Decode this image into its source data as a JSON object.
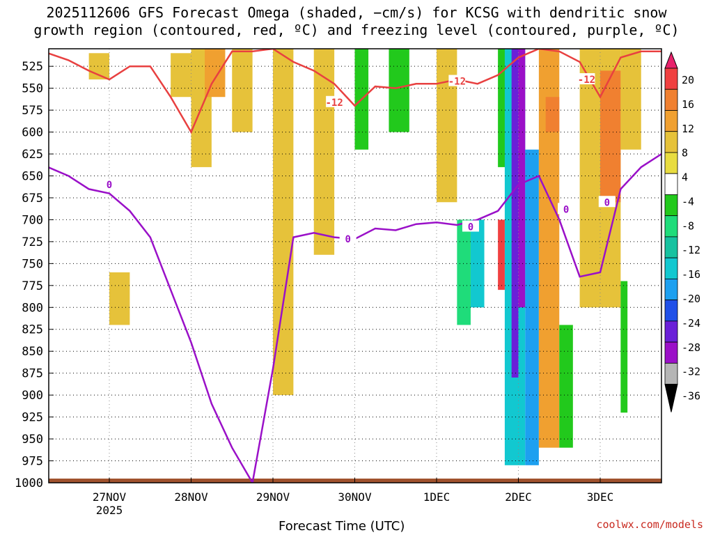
{
  "title_line1": "2025112606 GFS Forecast Omega (shaded, −cm/s) for KCSG with dendritic snow",
  "title_line2": "growth region (contoured, red, ºC) and freezing level (contoured, purple, ºC)",
  "credit": "coolwx.com/models",
  "chart_data": {
    "type": "heatmap",
    "xlabel": "Forecast Time (UTC)",
    "ylabel": "",
    "x_ticks": [
      "27NOV",
      "28NOV",
      "29NOV",
      "30NOV",
      "1DEC",
      "2DEC",
      "3DEC"
    ],
    "x_sublabel": "2025",
    "y_ticks": [
      525,
      550,
      575,
      600,
      625,
      650,
      675,
      700,
      725,
      750,
      775,
      800,
      825,
      850,
      875,
      900,
      925,
      950,
      975,
      1000
    ],
    "y_range_hpa": [
      1000,
      505
    ],
    "colorbar_labels": [
      "20",
      "16",
      "12",
      "8",
      "4",
      "-4",
      "-8",
      "-12",
      "-16",
      "-20",
      "-24",
      "-28",
      "-32",
      "-36"
    ],
    "colorbar_colors": [
      "#e8226b",
      "#f04040",
      "#f08030",
      "#f0a030",
      "#e6c23a",
      "#e8dc40",
      "#ffffff",
      "#22c91c",
      "#1fdc7a",
      "#17c2a0",
      "#12c8d0",
      "#1da0f0",
      "#2050e8",
      "#6a20d8",
      "#9b10c8",
      "#b5b5b5",
      "#000000"
    ],
    "contour_labels": {
      "dendritic_red": "-12",
      "freezing_purple": "0"
    },
    "red_contour_color": "#e84040",
    "purple_contour_color": "#9a10c8",
    "ground_color": "#a0522d",
    "red_line": [
      [
        "26NOV06",
        510
      ],
      [
        "26NOV12",
        518
      ],
      [
        "26NOV18",
        530
      ],
      [
        "27NOV00",
        540
      ],
      [
        "27NOV06",
        525
      ],
      [
        "27NOV12",
        525
      ],
      [
        "27NOV18",
        560
      ],
      [
        "28NOV00",
        600
      ],
      [
        "28NOV06",
        545
      ],
      [
        "28NOV12",
        508
      ],
      [
        "28NOV18",
        508
      ],
      [
        "29NOV00",
        505
      ],
      [
        "29NOV06",
        520
      ],
      [
        "29NOV12",
        530
      ],
      [
        "29NOV18",
        545
      ],
      [
        "30NOV00",
        570
      ],
      [
        "30NOV06",
        548
      ],
      [
        "30NOV12",
        550
      ],
      [
        "30NOV18",
        545
      ],
      [
        "1DEC00",
        545
      ],
      [
        "1DEC06",
        540
      ],
      [
        "1DEC12",
        545
      ],
      [
        "1DEC18",
        535
      ],
      [
        "2DEC00",
        515
      ],
      [
        "2DEC06",
        505
      ],
      [
        "2DEC12",
        508
      ],
      [
        "2DEC18",
        520
      ],
      [
        "3DEC00",
        560
      ],
      [
        "3DEC06",
        515
      ],
      [
        "3DEC12",
        508
      ],
      [
        "3DEC18",
        508
      ]
    ],
    "purple_line": [
      [
        "26NOV06",
        640
      ],
      [
        "26NOV12",
        650
      ],
      [
        "26NOV18",
        665
      ],
      [
        "27NOV00",
        670
      ],
      [
        "27NOV06",
        690
      ],
      [
        "27NOV12",
        720
      ],
      [
        "27NOV18",
        780
      ],
      [
        "28NOV00",
        840
      ],
      [
        "28NOV06",
        910
      ],
      [
        "28NOV12",
        960
      ],
      [
        "28NOV18",
        1000
      ],
      [
        "29NOV00",
        870
      ],
      [
        "29NOV06",
        720
      ],
      [
        "29NOV12",
        715
      ],
      [
        "29NOV18",
        720
      ],
      [
        "30NOV00",
        722
      ],
      [
        "30NOV06",
        710
      ],
      [
        "30NOV12",
        712
      ],
      [
        "30NOV18",
        705
      ],
      [
        "1DEC00",
        703
      ],
      [
        "1DEC06",
        706
      ],
      [
        "1DEC12",
        700
      ],
      [
        "1DEC18",
        690
      ],
      [
        "2DEC00",
        660
      ],
      [
        "2DEC06",
        650
      ],
      [
        "2DEC12",
        700
      ],
      [
        "2DEC18",
        765
      ],
      [
        "3DEC00",
        760
      ],
      [
        "3DEC06",
        665
      ],
      [
        "3DEC12",
        640
      ],
      [
        "3DEC18",
        625
      ]
    ],
    "omega_regions": [
      {
        "t_start": "26NOV18",
        "t_end": "27NOV00",
        "p_top": 510,
        "p_bottom": 540,
        "value": 5
      },
      {
        "t_start": "27NOV00",
        "t_end": "27NOV06",
        "p_top": 760,
        "p_bottom": 820,
        "value": 5
      },
      {
        "t_start": "27NOV18",
        "t_end": "28NOV00",
        "p_top": 510,
        "p_bottom": 560,
        "value": 5
      },
      {
        "t_start": "28NOV00",
        "t_end": "28NOV06",
        "p_top": 505,
        "p_bottom": 640,
        "value": 6
      },
      {
        "t_start": "28NOV04",
        "t_end": "28NOV10",
        "p_top": 505,
        "p_bottom": 560,
        "value": 10
      },
      {
        "t_start": "28NOV12",
        "t_end": "28NOV18",
        "p_top": 505,
        "p_bottom": 600,
        "value": 5
      },
      {
        "t_start": "29NOV00",
        "t_end": "29NOV06",
        "p_top": 505,
        "p_bottom": 900,
        "value": 5
      },
      {
        "t_start": "29NOV12",
        "t_end": "29NOV18",
        "p_top": 505,
        "p_bottom": 740,
        "value": 5
      },
      {
        "t_start": "30NOV00",
        "t_end": "30NOV04",
        "p_top": 505,
        "p_bottom": 620,
        "value": -6
      },
      {
        "t_start": "30NOV10",
        "t_end": "30NOV16",
        "p_top": 505,
        "p_bottom": 600,
        "value": -6
      },
      {
        "t_start": "1DEC00",
        "t_end": "1DEC06",
        "p_top": 505,
        "p_bottom": 680,
        "value": 5
      },
      {
        "t_start": "1DEC06",
        "t_end": "1DEC10",
        "p_top": 700,
        "p_bottom": 820,
        "value": -10
      },
      {
        "t_start": "1DEC10",
        "t_end": "1DEC14",
        "p_top": 700,
        "p_bottom": 800,
        "value": -14
      },
      {
        "t_start": "1DEC18",
        "t_end": "2DEC00",
        "p_top": 505,
        "p_bottom": 640,
        "value": -6
      },
      {
        "t_start": "1DEC20",
        "t_end": "2DEC02",
        "p_top": 505,
        "p_bottom": 980,
        "value": -14
      },
      {
        "t_start": "1DEC22",
        "t_end": "2DEC00",
        "p_top": 505,
        "p_bottom": 880,
        "value": -26
      },
      {
        "t_start": "2DEC00",
        "t_end": "2DEC02",
        "p_top": 505,
        "p_bottom": 800,
        "value": -30
      },
      {
        "t_start": "1DEC18",
        "t_end": "1DEC20",
        "p_top": 700,
        "p_bottom": 780,
        "value": 18
      },
      {
        "t_start": "2DEC02",
        "t_end": "2DEC06",
        "p_top": 620,
        "p_bottom": 980,
        "value": -16
      },
      {
        "t_start": "2DEC06",
        "t_end": "2DEC12",
        "p_top": 505,
        "p_bottom": 960,
        "value": 8
      },
      {
        "t_start": "2DEC08",
        "t_end": "2DEC12",
        "p_top": 560,
        "p_bottom": 600,
        "value": 14
      },
      {
        "t_start": "2DEC12",
        "t_end": "2DEC16",
        "p_top": 820,
        "p_bottom": 960,
        "value": -6
      },
      {
        "t_start": "2DEC18",
        "t_end": "3DEC06",
        "p_top": 505,
        "p_bottom": 800,
        "value": 6
      },
      {
        "t_start": "3DEC00",
        "t_end": "3DEC06",
        "p_top": 530,
        "p_bottom": 680,
        "value": 12
      },
      {
        "t_start": "3DEC06",
        "t_end": "3DEC12",
        "p_top": 505,
        "p_bottom": 620,
        "value": 6
      },
      {
        "t_start": "3DEC06",
        "t_end": "3DEC08",
        "p_top": 770,
        "p_bottom": 920,
        "value": -6
      }
    ]
  }
}
